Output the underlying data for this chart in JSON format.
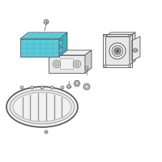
{
  "background_color": "#ffffff",
  "highlight_color": "#5ec8d8",
  "line_color": "#555555",
  "light_gray": "#c8c8c8",
  "medium_gray": "#999999",
  "dark_gray": "#555555",
  "fill_gray": "#e8e8e8",
  "fill_light": "#f2f2f2",
  "figsize": [
    2.0,
    2.0
  ],
  "dpi": 100
}
